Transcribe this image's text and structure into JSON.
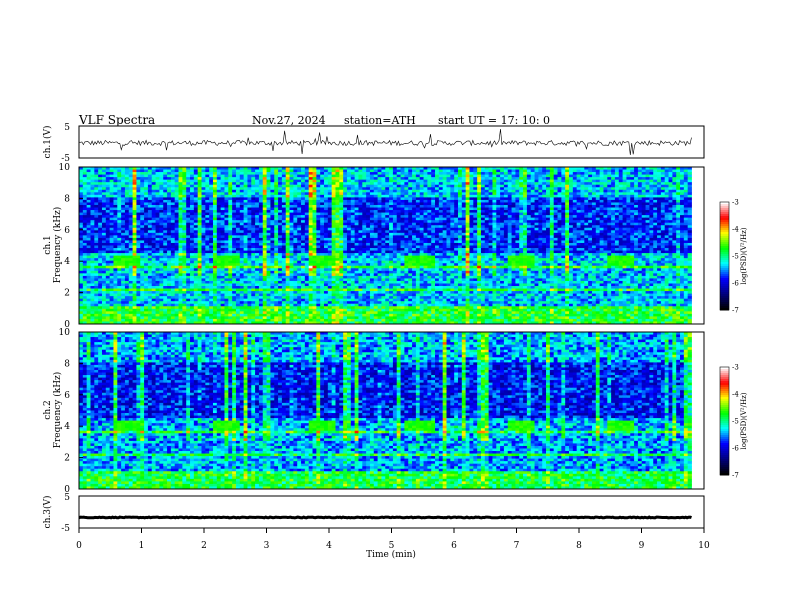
{
  "header": {
    "title": "VLF  Spectra",
    "date": "Nov.27, 2024",
    "station": "station=ATH",
    "start_ut": "start  UT  =   17: 10: 0"
  },
  "chart_data": [
    {
      "type": "line",
      "panel": "ch1-voltage",
      "ylabel": "ch.1(V)",
      "ylim": [
        -5,
        5
      ],
      "yticks": [
        "5",
        "-5"
      ],
      "xlim": [
        0,
        10
      ],
      "series": [
        {
          "baseline_volts": -0.3,
          "noise_amplitude_volts": 1.6,
          "spike_amplitude_volts": 4.0,
          "end_min": 9.8
        }
      ]
    },
    {
      "type": "heatmap",
      "panel": "ch1-spectrogram",
      "channel_label": "ch.1",
      "ylabel": "Frequency  (kHz)",
      "ylim": [
        0,
        10
      ],
      "yticks": [
        "0",
        "2",
        "4",
        "6",
        "8",
        "10"
      ],
      "xlim": [
        0,
        10
      ],
      "data_end_min": 9.8,
      "burst_times_min": [
        0.75,
        2.35,
        3.9,
        5.45,
        7.05,
        8.65
      ],
      "burst_freq_khz": 4.0,
      "colorbar": {
        "label": "log(PSD)(V²/Hz)",
        "ticks": [
          "-3",
          "-4",
          "-5",
          "-6",
          "-7"
        ],
        "range": [
          -7,
          -3
        ]
      }
    },
    {
      "type": "heatmap",
      "panel": "ch2-spectrogram",
      "channel_label": "ch.2",
      "ylabel": "Frequency  (kHz)",
      "ylim": [
        0,
        10
      ],
      "yticks": [
        "0",
        "2",
        "4",
        "6",
        "8",
        "10"
      ],
      "xlim": [
        0,
        10
      ],
      "data_end_min": 9.8,
      "burst_times_min": [
        0.75,
        2.35,
        3.9,
        5.45,
        7.05,
        8.65
      ],
      "burst_freq_khz": 4.0,
      "colorbar": {
        "label": "log(PSD)(V²/Hz)",
        "ticks": [
          "-3",
          "-4",
          "-5",
          "-6",
          "-7"
        ],
        "range": [
          -7,
          -3
        ]
      }
    },
    {
      "type": "line",
      "panel": "ch3-voltage",
      "ylabel": "ch.3(V)",
      "ylim": [
        -5,
        5
      ],
      "yticks": [
        "5",
        "-5"
      ],
      "xlim": [
        0,
        10
      ],
      "series": [
        {
          "baseline_volts": -1.7,
          "noise_amplitude_volts": 0.25,
          "end_min": 9.8
        }
      ]
    }
  ],
  "xaxis": {
    "label": "Time  (min)",
    "ticks": [
      "0",
      "1",
      "2",
      "3",
      "4",
      "5",
      "6",
      "7",
      "8",
      "9",
      "10"
    ]
  },
  "colors": {
    "colormap": [
      "#000000",
      "#000080",
      "#0000ff",
      "#00ffff",
      "#00ff00",
      "#ffff00",
      "#ff0000",
      "#ffffff"
    ]
  }
}
